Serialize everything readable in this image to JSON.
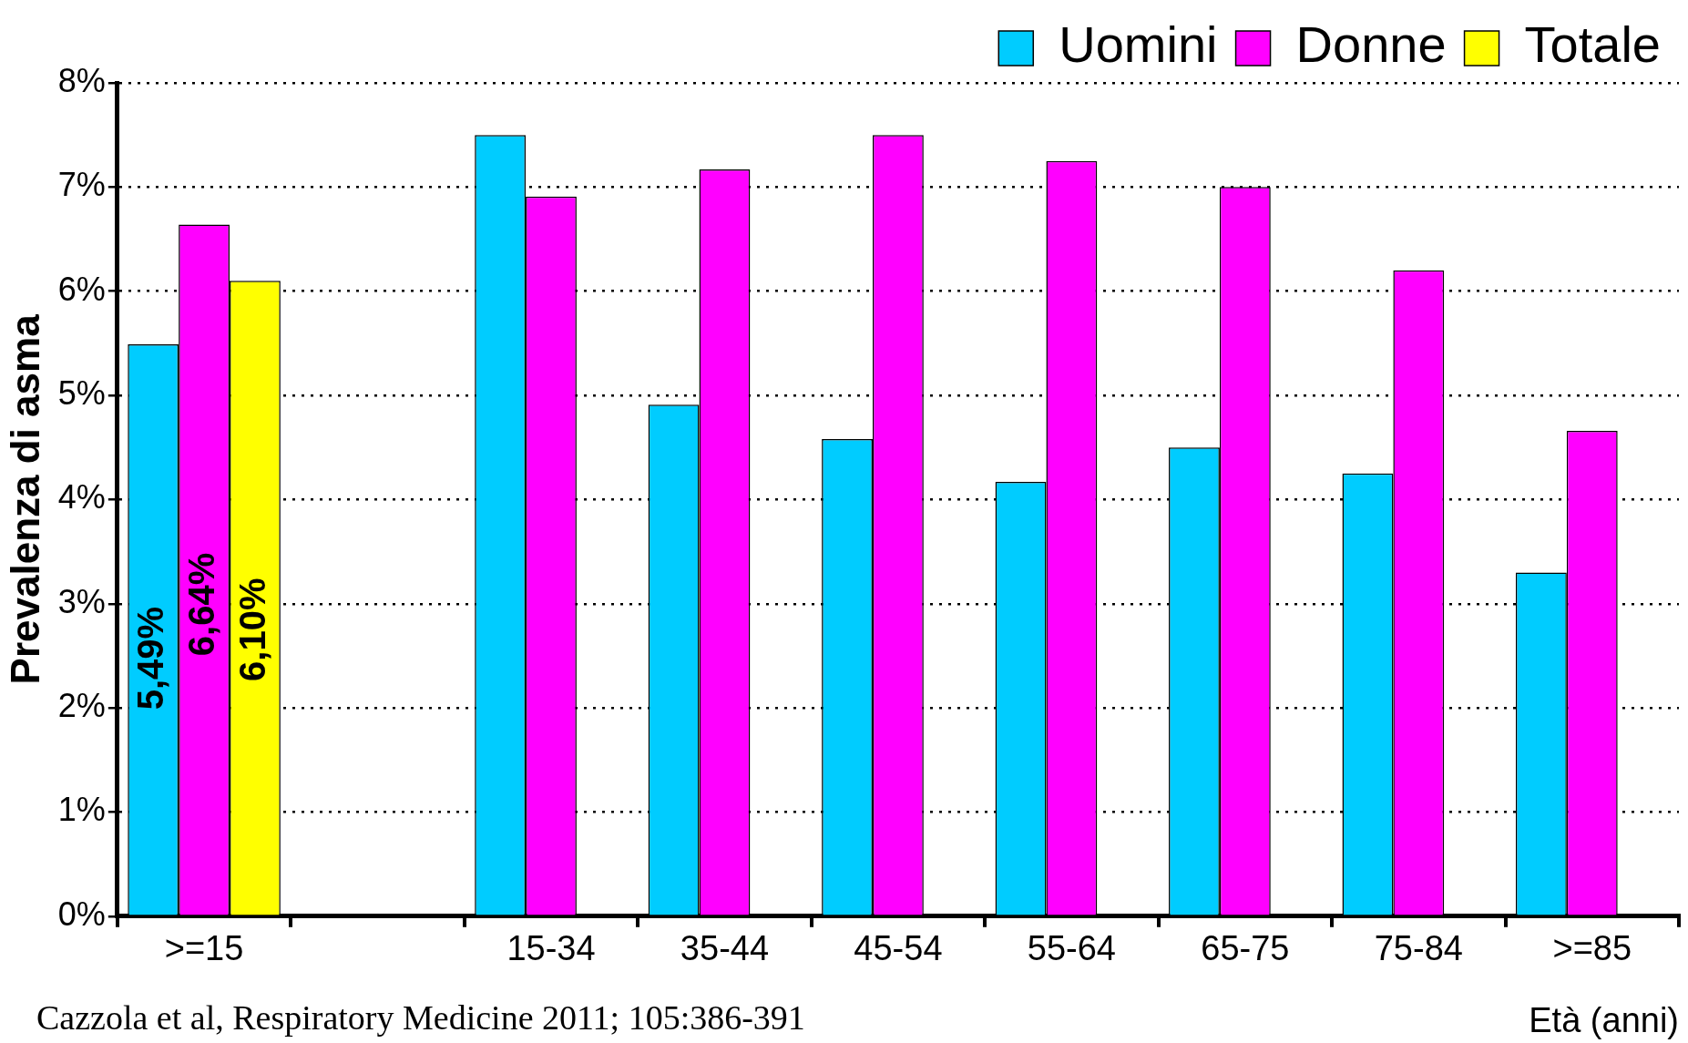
{
  "chart_data": {
    "type": "bar",
    "ylabel": "Prevalenza di asma",
    "xlabel": "Età (anni)",
    "categories": [
      ">=15",
      null,
      "15-34",
      "35-44",
      "45-54",
      "55-64",
      "65-75",
      "75-84",
      ">=85"
    ],
    "series": [
      {
        "name": "Uomini",
        "color": "#00ccff",
        "values": [
          5.49,
          null,
          7.5,
          4.91,
          4.58,
          4.17,
          4.5,
          4.25,
          3.3
        ],
        "value_labels": [
          "5,49%",
          null,
          null,
          null,
          null,
          null,
          null,
          null,
          null
        ]
      },
      {
        "name": "Donne",
        "color": "#ff00ff",
        "values": [
          6.64,
          null,
          6.91,
          7.17,
          7.5,
          7.25,
          7.0,
          6.2,
          4.66
        ],
        "value_labels": [
          "6,64%",
          null,
          null,
          null,
          null,
          null,
          null,
          null,
          null
        ]
      },
      {
        "name": "Totale",
        "color": "#ffff00",
        "values": [
          6.1,
          null,
          null,
          null,
          null,
          null,
          null,
          null,
          null
        ],
        "value_labels": [
          "6,10%",
          null,
          null,
          null,
          null,
          null,
          null,
          null,
          null
        ]
      }
    ],
    "ylim": [
      0,
      8
    ],
    "yticks": [
      {
        "value": 0,
        "label": "0%"
      },
      {
        "value": 1,
        "label": "1%"
      },
      {
        "value": 2,
        "label": "2%"
      },
      {
        "value": 3,
        "label": "3%"
      },
      {
        "value": 4,
        "label": "4%"
      },
      {
        "value": 5,
        "label": "5%"
      },
      {
        "value": 6,
        "label": "6%"
      },
      {
        "value": 7,
        "label": "7%"
      },
      {
        "value": 8,
        "label": "8%"
      }
    ],
    "grid": "y",
    "legend": "top right",
    "annotations": [
      "Cazzola et al, Respiratory Medicine 2011; 105:386-391"
    ]
  }
}
